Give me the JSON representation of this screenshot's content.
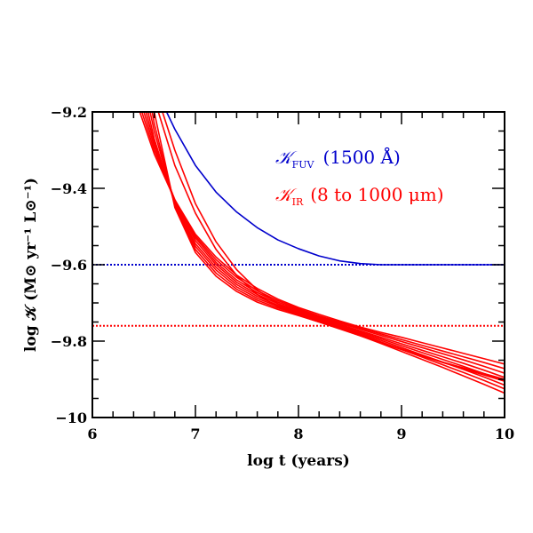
{
  "chart_data": {
    "type": "line",
    "title": "",
    "xlabel": "log t (years)",
    "ylabel": "log 𝒦 (M⊙ yr⁻¹ L⊙⁻¹)",
    "xlim": [
      6,
      10
    ],
    "ylim": [
      -10,
      -9.2
    ],
    "x_ticks": [
      "6",
      "7",
      "8",
      "9",
      "10"
    ],
    "y_ticks": [
      "−10",
      "−9.8",
      "−9.6",
      "−9.4",
      "−9.2"
    ],
    "grid": false,
    "legend_position": "top-right",
    "colors": {
      "fuv": "#0000cc",
      "ir": "#ff0000",
      "axis": "#000000"
    },
    "legend": {
      "fuv_symbol": "𝒦",
      "fuv_sub": "FUV",
      "fuv_text": "(1500 Å)",
      "ir_symbol": "𝒦",
      "ir_sub": "IR",
      "ir_text": "(8 to 1000 μm)"
    },
    "reference_lines": [
      {
        "name": "FUV asymptote",
        "y": -9.6,
        "color": "#0000cc",
        "style": "dotted"
      },
      {
        "name": "IR reference",
        "y": -9.76,
        "color": "#ff0000",
        "style": "dotted"
      }
    ],
    "series": [
      {
        "id": "fuv",
        "color": "#0000cc",
        "x": [
          6.72,
          6.8,
          7.0,
          7.2,
          7.4,
          7.6,
          7.8,
          8.0,
          8.2,
          8.4,
          8.6,
          8.8,
          9.0,
          9.5,
          10.0
        ],
        "y": [
          -9.2,
          -9.245,
          -9.34,
          -9.41,
          -9.462,
          -9.503,
          -9.535,
          -9.558,
          -9.577,
          -9.59,
          -9.597,
          -9.6,
          -9.6,
          -9.6,
          -9.6
        ]
      },
      {
        "id": "ir-1",
        "color": "#ff0000",
        "x": [
          6.46,
          6.6,
          6.8,
          7.0,
          7.2,
          7.4,
          7.6,
          7.8,
          8.0,
          8.2,
          8.4,
          8.6,
          8.8,
          9.0,
          9.2,
          9.4,
          9.6,
          9.8,
          10.0
        ],
        "y": [
          -9.2,
          -9.31,
          -9.43,
          -9.52,
          -9.58,
          -9.627,
          -9.662,
          -9.69,
          -9.712,
          -9.73,
          -9.747,
          -9.763,
          -9.777,
          -9.79,
          -9.804,
          -9.818,
          -9.832,
          -9.846,
          -9.86
        ]
      },
      {
        "id": "ir-2",
        "color": "#ff0000",
        "x": [
          6.48,
          6.6,
          6.8,
          7.0,
          7.2,
          7.4,
          7.6,
          7.8,
          8.0,
          8.2,
          8.4,
          8.6,
          8.8,
          9.0,
          9.2,
          9.4,
          9.6,
          9.8,
          10.0
        ],
        "y": [
          -9.2,
          -9.3,
          -9.43,
          -9.525,
          -9.587,
          -9.633,
          -9.668,
          -9.694,
          -9.715,
          -9.734,
          -9.75,
          -9.766,
          -9.781,
          -9.796,
          -9.811,
          -9.826,
          -9.841,
          -9.856,
          -9.872
        ]
      },
      {
        "id": "ir-3",
        "color": "#ff0000",
        "x": [
          6.5,
          6.6,
          6.8,
          7.0,
          7.2,
          7.4,
          7.6,
          7.8,
          8.0,
          8.2,
          8.4,
          8.6,
          8.8,
          9.0,
          9.2,
          9.4,
          9.6,
          9.8,
          10.0
        ],
        "y": [
          -9.2,
          -9.29,
          -9.43,
          -9.53,
          -9.594,
          -9.64,
          -9.673,
          -9.698,
          -9.718,
          -9.737,
          -9.753,
          -9.769,
          -9.785,
          -9.801,
          -9.817,
          -9.833,
          -9.849,
          -9.866,
          -9.884
        ]
      },
      {
        "id": "ir-4",
        "color": "#ff0000",
        "x": [
          6.52,
          6.6,
          6.8,
          7.0,
          7.2,
          7.4,
          7.6,
          7.8,
          8.0,
          8.2,
          8.4,
          8.6,
          8.8,
          9.0,
          9.2,
          9.4,
          9.6,
          9.8,
          10.0
        ],
        "y": [
          -9.2,
          -9.28,
          -9.435,
          -9.537,
          -9.6,
          -9.646,
          -9.678,
          -9.702,
          -9.721,
          -9.739,
          -9.756,
          -9.773,
          -9.79,
          -9.807,
          -9.824,
          -9.841,
          -9.858,
          -9.876,
          -9.895
        ]
      },
      {
        "id": "ir-5",
        "color": "#ff0000",
        "x": [
          6.54,
          6.6,
          6.8,
          7.0,
          7.2,
          7.4,
          7.6,
          7.8,
          8.0,
          8.2,
          8.4,
          8.6,
          8.8,
          9.0,
          9.2,
          9.4,
          9.6,
          9.8,
          10.0
        ],
        "y": [
          -9.2,
          -9.27,
          -9.44,
          -9.545,
          -9.607,
          -9.652,
          -9.683,
          -9.706,
          -9.724,
          -9.741,
          -9.758,
          -9.776,
          -9.794,
          -9.812,
          -9.83,
          -9.848,
          -9.866,
          -9.885,
          -9.905
        ]
      },
      {
        "id": "ir-6",
        "color": "#ff0000",
        "x": [
          6.56,
          6.6,
          6.8,
          7.0,
          7.2,
          7.4,
          7.6,
          7.8,
          8.0,
          8.2,
          8.4,
          8.6,
          8.8,
          9.0,
          9.2,
          9.4,
          9.6,
          9.8,
          10.0
        ],
        "y": [
          -9.2,
          -9.25,
          -9.44,
          -9.552,
          -9.614,
          -9.658,
          -9.688,
          -9.709,
          -9.727,
          -9.744,
          -9.761,
          -9.779,
          -9.798,
          -9.817,
          -9.836,
          -9.855,
          -9.874,
          -9.894,
          -9.915
        ]
      },
      {
        "id": "ir-7",
        "color": "#ff0000",
        "x": [
          6.58,
          6.6,
          6.8,
          7.0,
          7.2,
          7.4,
          7.6,
          7.8,
          8.0,
          8.2,
          8.4,
          8.6,
          8.8,
          9.0,
          9.2,
          9.4,
          9.6,
          9.8,
          10.0
        ],
        "y": [
          -9.2,
          -9.23,
          -9.445,
          -9.56,
          -9.622,
          -9.664,
          -9.693,
          -9.713,
          -9.73,
          -9.747,
          -9.764,
          -9.782,
          -9.802,
          -9.822,
          -9.842,
          -9.862,
          -9.882,
          -9.903,
          -9.925
        ]
      },
      {
        "id": "ir-8",
        "color": "#ff0000",
        "x": [
          6.6,
          6.8,
          7.0,
          7.2,
          7.4,
          7.6,
          7.8,
          8.0,
          8.2,
          8.4,
          8.6,
          8.8,
          9.0,
          9.2,
          9.4,
          9.6,
          9.8,
          10.0
        ],
        "y": [
          -9.2,
          -9.45,
          -9.568,
          -9.63,
          -9.67,
          -9.698,
          -9.717,
          -9.733,
          -9.75,
          -9.767,
          -9.786,
          -9.806,
          -9.827,
          -9.848,
          -9.869,
          -9.891,
          -9.913,
          -9.936
        ]
      },
      {
        "id": "ir-9",
        "color": "#ff0000",
        "x": [
          6.64,
          6.8,
          7.0,
          7.2,
          7.4,
          7.6,
          7.8,
          8.0,
          8.2,
          8.4,
          8.6,
          8.8,
          9.0,
          9.4,
          10.0
        ],
        "y": [
          -9.2,
          -9.34,
          -9.465,
          -9.56,
          -9.628,
          -9.678,
          -9.71,
          -9.732,
          -9.75,
          -9.768,
          -9.786,
          -9.804,
          -9.822,
          -9.856,
          -9.905
        ]
      },
      {
        "id": "ir-10",
        "color": "#ff0000",
        "x": [
          6.68,
          6.8,
          7.0,
          7.2,
          7.4,
          7.6,
          7.8,
          8.0,
          8.2,
          8.4,
          8.6,
          8.8,
          9.0,
          9.4,
          10.0
        ],
        "y": [
          -9.2,
          -9.3,
          -9.44,
          -9.54,
          -9.613,
          -9.666,
          -9.702,
          -9.727,
          -9.747,
          -9.766,
          -9.785,
          -9.803,
          -9.821,
          -9.855,
          -9.9
        ]
      }
    ]
  }
}
